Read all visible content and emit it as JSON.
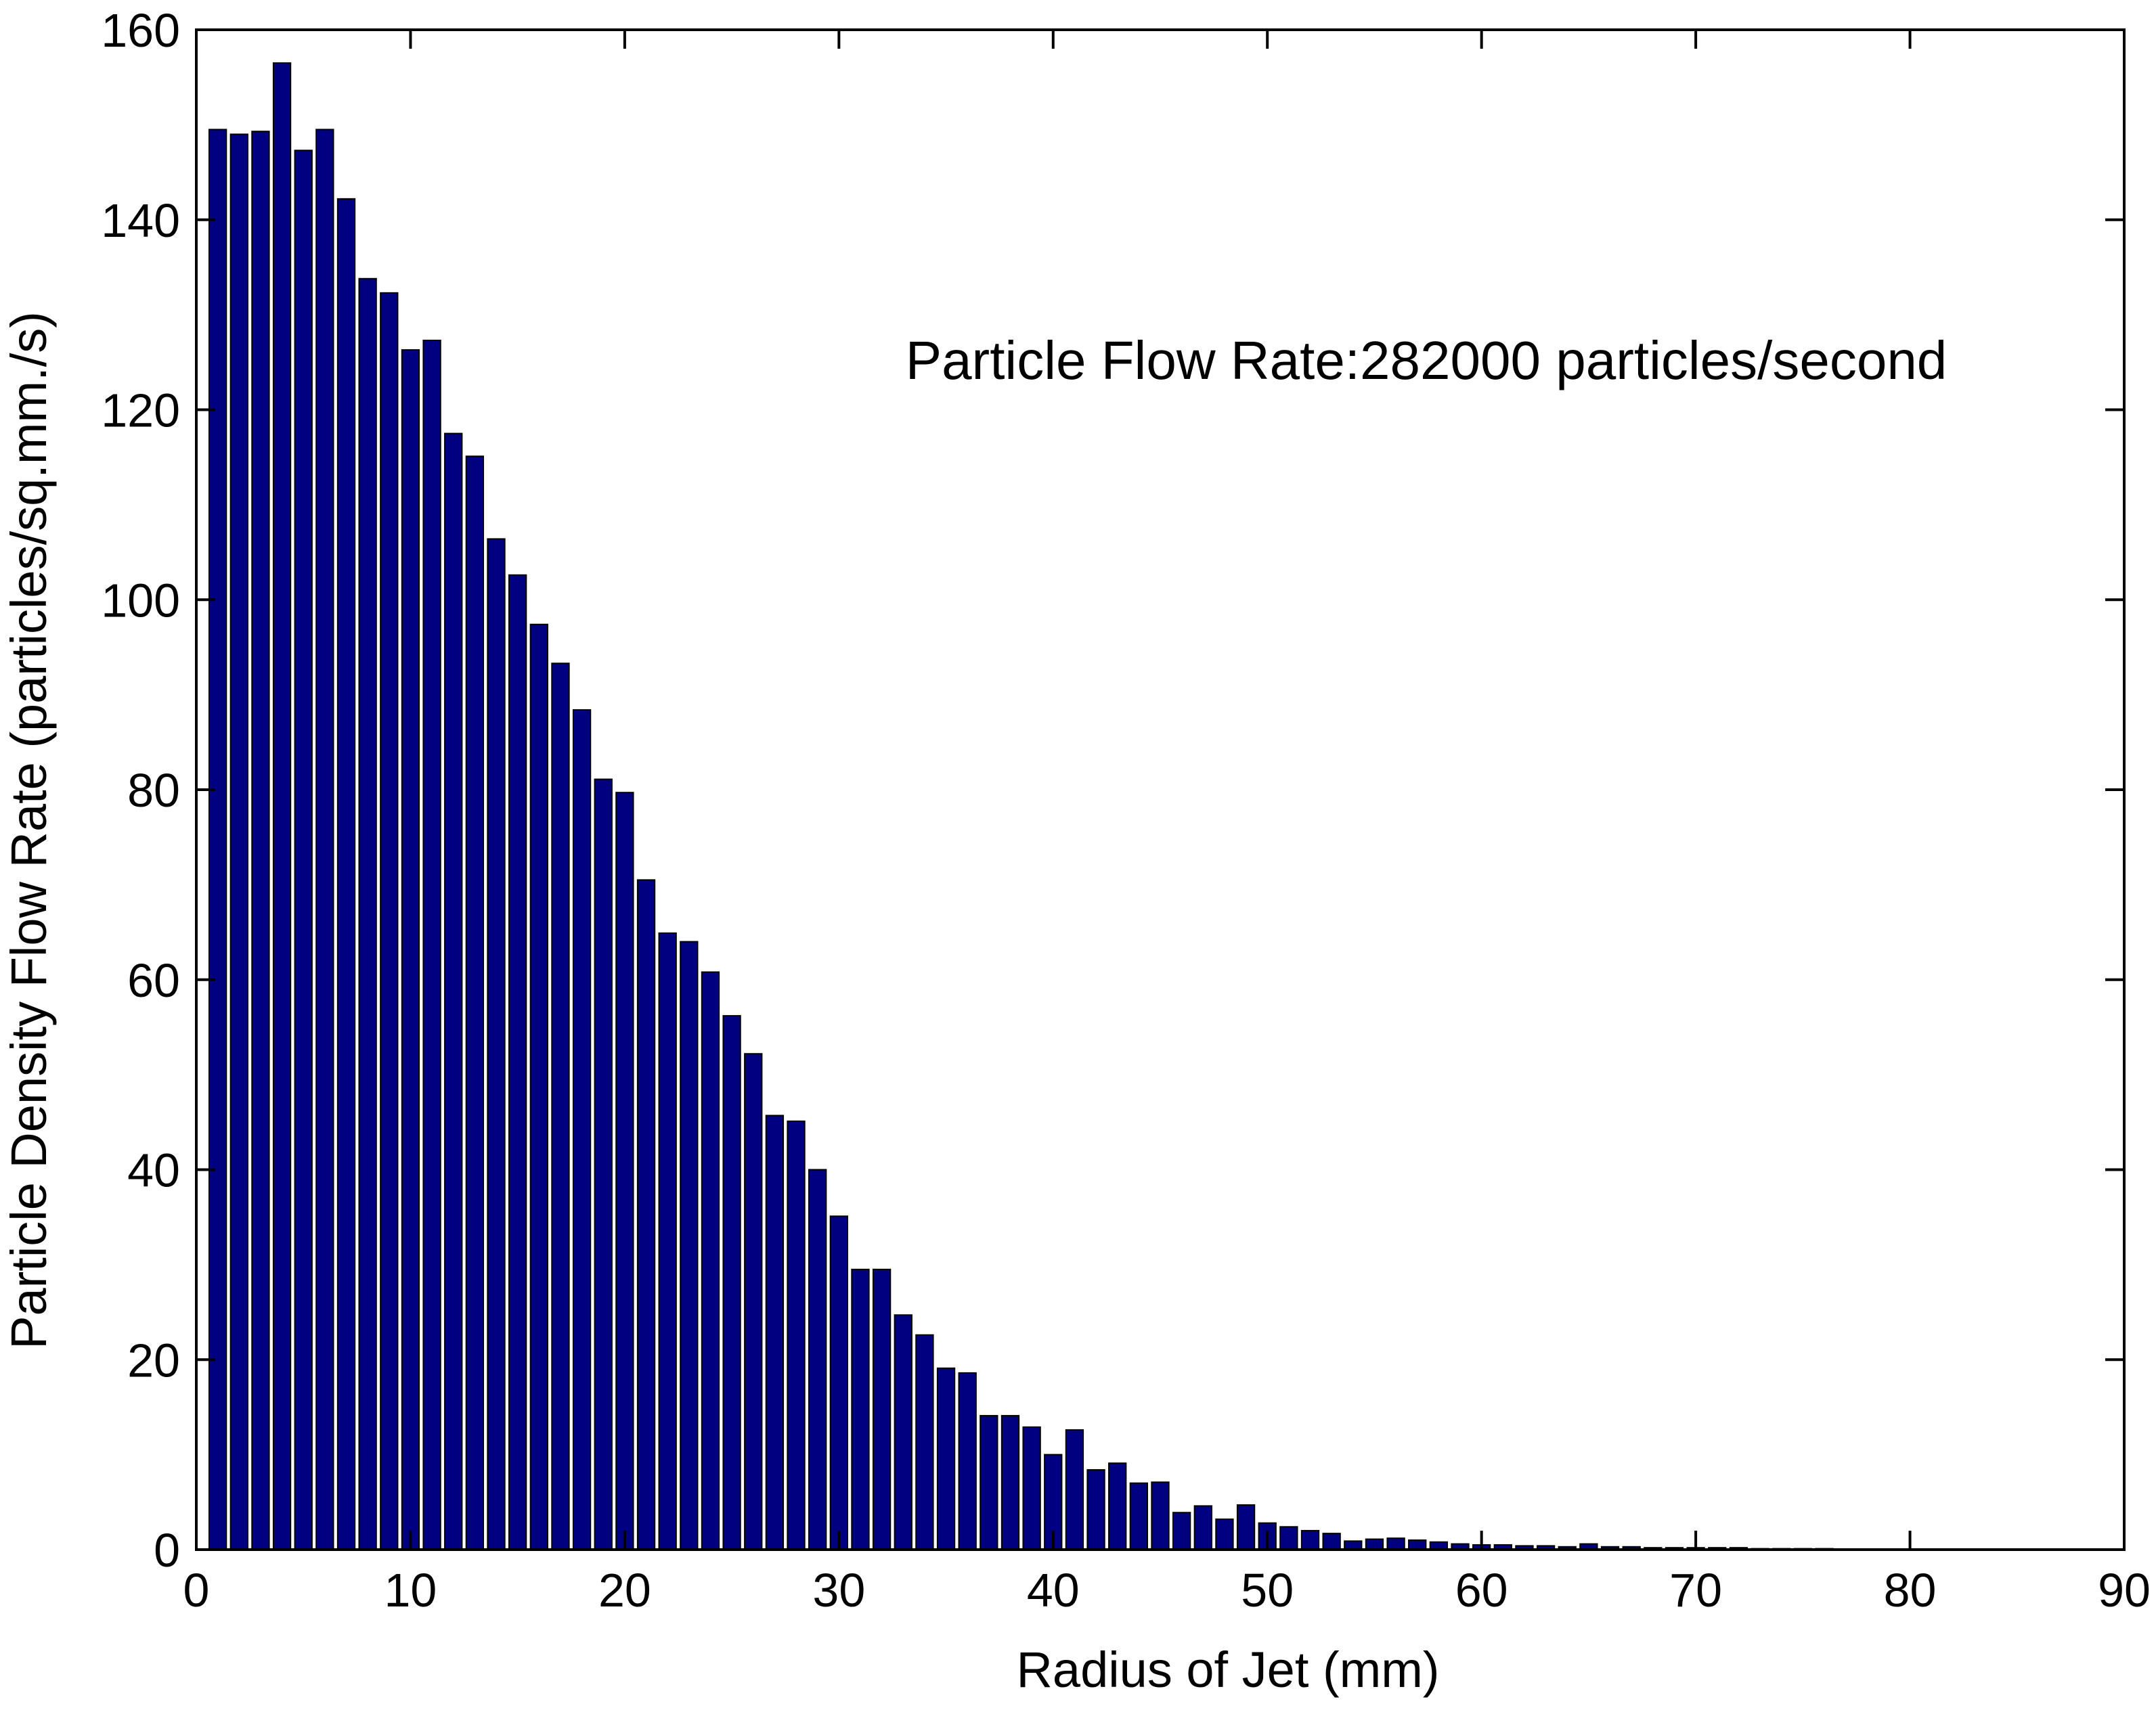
{
  "chart_data": {
    "type": "bar",
    "xlabel": "Radius of Jet (mm)",
    "ylabel": "Particle Density Flow Rate (particles/sq.mm./s)",
    "annotation": "Particle Flow Rate:282000 particles/second",
    "xlim": [
      0,
      90
    ],
    "ylim": [
      0,
      160
    ],
    "xticks": [
      0,
      10,
      20,
      30,
      40,
      50,
      60,
      70,
      80,
      90
    ],
    "yticks": [
      0,
      20,
      40,
      60,
      80,
      100,
      120,
      140,
      160
    ],
    "grid": false,
    "bar_color": "#000080",
    "bar_edge_color": "#000000",
    "x": [
      1,
      2,
      3,
      4,
      5,
      6,
      7,
      8,
      9,
      10,
      11,
      12,
      13,
      14,
      15,
      16,
      17,
      18,
      19,
      20,
      21,
      22,
      23,
      24,
      25,
      26,
      27,
      28,
      29,
      30,
      31,
      32,
      33,
      34,
      35,
      36,
      37,
      38,
      39,
      40,
      41,
      42,
      43,
      44,
      45,
      46,
      47,
      48,
      49,
      50,
      51,
      52,
      53,
      54,
      55,
      56,
      57,
      58,
      59,
      60,
      61,
      62,
      63,
      64,
      65,
      66,
      67,
      68,
      69,
      70,
      71,
      72,
      73,
      74,
      75,
      76
    ],
    "values": [
      149.5,
      149,
      149.3,
      156.5,
      147.3,
      149.5,
      142.2,
      133.8,
      132.3,
      126.3,
      127.3,
      117.5,
      115.1,
      106.4,
      102.6,
      97.4,
      93.3,
      88.4,
      81.1,
      79.7,
      70.5,
      64.9,
      64,
      60.8,
      56.2,
      52.2,
      45.7,
      45.1,
      40,
      35.1,
      29.5,
      29.5,
      24.7,
      22.6,
      19.1,
      18.6,
      14.1,
      14.1,
      12.9,
      10,
      12.6,
      8.4,
      9.1,
      7,
      7.1,
      3.9,
      4.6,
      3.2,
      4.7,
      2.8,
      2.4,
      2,
      1.7,
      0.9,
      1.1,
      1.2,
      1,
      0.8,
      0.6,
      0.5,
      0.5,
      0.4,
      0.4,
      0.3,
      0.6,
      0.3,
      0.3,
      0.2,
      0.2,
      0.2,
      0.2,
      0.2,
      0.1,
      0.1,
      0.1,
      0.1
    ]
  }
}
